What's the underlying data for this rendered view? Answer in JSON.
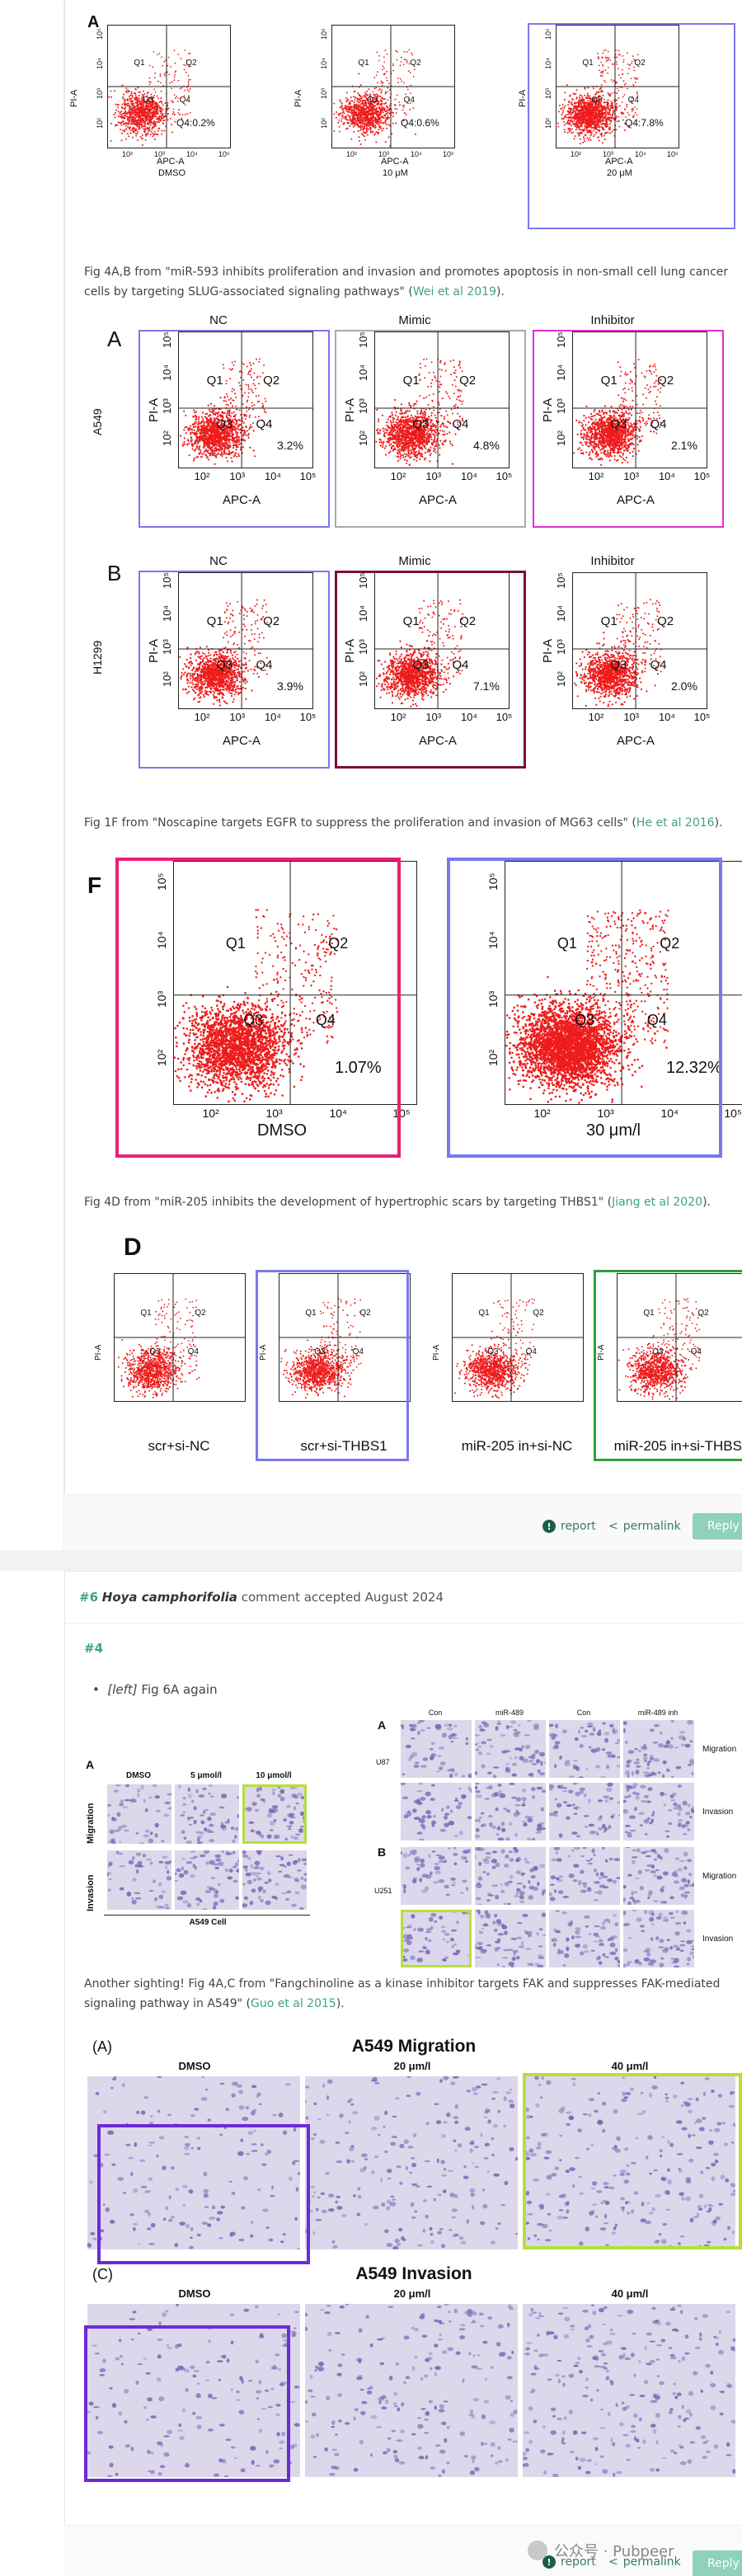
{
  "comment1": {
    "fig1_captions": {
      "panel": "A",
      "plots": [
        {
          "q1": "Q1",
          "q2": "Q2",
          "q3": "Q3",
          "q4": "Q4",
          "q4_pct": "Q4:0.2%",
          "xlabel": "APC-A",
          "ylabel": "PI-A",
          "cond": "DMSO"
        },
        {
          "q1": "Q1",
          "q2": "Q2",
          "q3": "Q3",
          "q4": "Q4",
          "q4_pct": "Q4:0.6%",
          "xlabel": "APC-A",
          "ylabel": "PI-A",
          "cond": "10 μM"
        },
        {
          "q1": "Q1",
          "q2": "Q2",
          "q3": "Q3",
          "q4": "Q4",
          "q4_pct": "Q4:7.8%",
          "xlabel": "APC-A",
          "ylabel": "PI-A",
          "cond": "20 μM"
        }
      ]
    },
    "caption1": {
      "pre": "Fig 4A,B from \"miR-593 inhibits proliferation and invasion and promotes apoptosis in non-small cell lung cancer cells by targeting SLUG-associated signaling pathways\" (",
      "link": "Wei et al 2019",
      "post": ")."
    },
    "fig2": {
      "panelA": "A",
      "panelB": "B",
      "rowA_label": "A549",
      "rowB_label": "H1299",
      "titles": [
        "NC",
        "Mimic",
        "Inhibitor"
      ],
      "rowA_pcts": [
        "3.2%",
        "4.8%",
        "2.1%"
      ],
      "rowB_pcts": [
        "3.9%",
        "7.1%",
        "2.0%"
      ],
      "xlabel": "APC-A",
      "ylabel": "PI-A",
      "q": [
        "Q1",
        "Q2",
        "Q3",
        "Q4"
      ]
    },
    "caption2": {
      "pre": "Fig 1F from \"Noscapine targets EGFR to suppress the proliferation and invasion of MG63 cells\" (",
      "link": "He et al 2016",
      "post": ")."
    },
    "fig3": {
      "panel": "F",
      "plots": [
        {
          "pct": "1.07%",
          "cond": "DMSO"
        },
        {
          "pct": "12.32%",
          "cond": "30 μm/l"
        }
      ],
      "q": [
        "Q1",
        "Q2",
        "Q3",
        "Q4"
      ]
    },
    "caption3": {
      "pre": "Fig 4D from \"miR-205 inhibits the development of hypertrophic scars by targeting THBS1\" (",
      "link": "Jiang et al 2020",
      "post": ")."
    },
    "fig4": {
      "panel": "D",
      "conds": [
        "scr+si-NC",
        "scr+si-THBS1",
        "miR-205 in+si-NC",
        "miR-205 in+si-THBS1"
      ],
      "q": [
        "Q1",
        "Q2",
        "Q3",
        "Q4"
      ],
      "ylabel": "PI-A"
    },
    "actions": {
      "report": "report",
      "permalink": "permalink",
      "reply": "Reply"
    }
  },
  "comment2": {
    "number": "#6",
    "author": "Hoya camphorifolia",
    "status": "comment accepted August 2024",
    "anchor": "#4",
    "bullet_tag": "[left]",
    "bullet_text": " Fig 6A again",
    "figL": {
      "panel": "A",
      "cols": [
        "DMSO",
        "5 μmol/l",
        "10 μmol/l"
      ],
      "rows": [
        "Migration",
        "Invasion"
      ],
      "footer": "A549 Cell"
    },
    "figR": {
      "panelA": "A",
      "panelB": "B",
      "cols": [
        "Con",
        "miR-489",
        "Con",
        "miR-489 inh"
      ],
      "rowsA_cell": "U87",
      "rowsB_cell": "U251",
      "rows": [
        "Migration",
        "Invasion"
      ]
    },
    "caption": {
      "pre": "Another sighting! Fig 4A,C from \"Fangchinoline as a kinase inhibitor targets FAK and suppresses FAK-mediated signaling pathway in A549\" (",
      "link": "Guo et al 2015",
      "post": ")."
    },
    "fig5": {
      "panelA": "(A)",
      "titleA": "A549 Migration",
      "panelC": "(C)",
      "titleC": "A549 Invasion",
      "cols": [
        "DMSO",
        "20 μm/l",
        "40 μm/l"
      ]
    },
    "watermark": "公众号 · Pubpeer",
    "actions": {
      "report": "report",
      "permalink": "permalink",
      "reply": "Reply"
    }
  },
  "colors": {
    "accent": "#3fa283",
    "dots": "#ee1c1c",
    "blue_box": "#7b78ee",
    "magenta_box": "#e02fd6",
    "gray_box": "#aaaaaa",
    "maroon_box": "#7a0f3c",
    "pink_box": "#ea1f72",
    "green_box": "#2f9e3f",
    "lime_box": "#b5e03a",
    "purple_box": "#6a2bd8",
    "cell_stain": "#7467b5"
  }
}
